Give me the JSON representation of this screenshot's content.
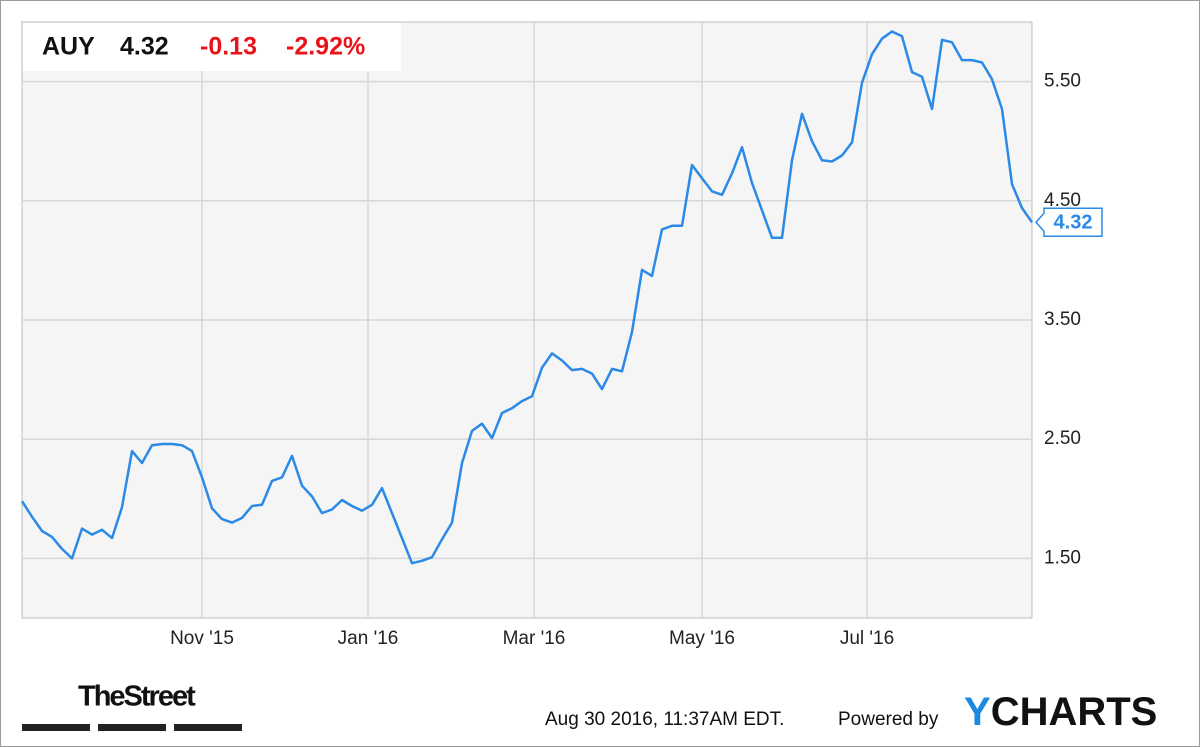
{
  "chart_data": {
    "type": "line",
    "header": {
      "symbol": "AUY",
      "change": "-0.13",
      "change_percent": "-2.92%"
    },
    "footer": {
      "source": "TheStreet",
      "timestamp": "Aug 30 2016, 11:37AM EDT.",
      "powered_by": "Powered by",
      "brand_prefix": "Y",
      "brand_rest": "CHARTS"
    },
    "color": "#2b8ae6",
    "grid": true,
    "xlim": [
      0,
      101
    ],
    "xticks": [
      {
        "value": 18,
        "label": "Nov '15"
      },
      {
        "value": 34.6,
        "label": "Jan '16"
      },
      {
        "value": 51.2,
        "label": "Mar '16"
      },
      {
        "value": 68,
        "label": "May '16"
      },
      {
        "value": 84.5,
        "label": "Jul '16"
      }
    ],
    "ylim": [
      1,
      6
    ],
    "yticks": [
      {
        "value": 1.5,
        "label": "1.50"
      },
      {
        "value": 2.5,
        "label": "2.50"
      },
      {
        "value": 3.5,
        "label": "3.50"
      },
      {
        "value": 4.5,
        "label": "4.50"
      },
      {
        "value": 5.5,
        "label": "5.50"
      }
    ],
    "values": [
      1.98,
      1.85,
      1.73,
      1.68,
      1.58,
      1.5,
      1.75,
      1.7,
      1.74,
      1.67,
      1.93,
      2.4,
      2.3,
      2.45,
      2.46,
      2.46,
      2.45,
      2.4,
      2.18,
      1.92,
      1.83,
      1.8,
      1.84,
      1.94,
      1.95,
      2.15,
      2.18,
      2.36,
      2.11,
      2.02,
      1.88,
      1.91,
      1.99,
      1.94,
      1.9,
      1.95,
      2.09,
      1.88,
      1.67,
      1.46,
      1.48,
      1.51,
      1.66,
      1.8,
      2.3,
      2.57,
      2.63,
      2.51,
      2.72,
      2.76,
      2.82,
      2.86,
      3.1,
      3.22,
      3.16,
      3.08,
      3.09,
      3.05,
      2.92,
      3.09,
      3.07,
      3.4,
      3.92,
      3.87,
      4.26,
      4.29,
      4.29,
      4.8,
      4.69,
      4.58,
      4.55,
      4.73,
      4.95,
      4.65,
      4.42,
      4.19,
      4.19,
      4.84,
      5.23,
      5.0,
      4.84,
      4.83,
      4.88,
      4.99,
      5.49,
      5.73,
      5.86,
      5.92,
      5.88,
      5.58,
      5.54,
      5.27,
      5.85,
      5.83,
      5.68,
      5.68,
      5.66,
      5.52,
      5.27,
      4.64,
      4.44,
      4.32
    ]
  }
}
